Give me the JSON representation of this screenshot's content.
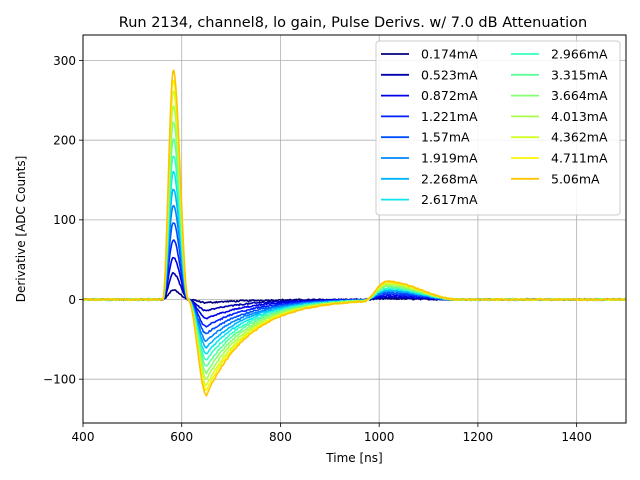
{
  "chart_data": {
    "type": "line",
    "title": "Run 2134, channel8, lo gain, Pulse Derivs. w/ 7.0 dB Attenuation",
    "xlabel": "Time [ns]",
    "ylabel": "Derivative [ADC Counts]",
    "xlim": [
      400,
      1500
    ],
    "ylim": [
      -155,
      332
    ],
    "xticks": [
      400,
      600,
      800,
      1000,
      1200,
      1400
    ],
    "yticks": [
      -100,
      0,
      100,
      200,
      300
    ],
    "ytick_labels": [
      "−100",
      "0",
      "100",
      "200",
      "300"
    ],
    "grid": true,
    "legend_location": "top-right",
    "legend_columns": 2,
    "pulse_shape": {
      "rise_start_ns": 562,
      "peak_ns": 583,
      "zero_cross_ns": 613,
      "trough_ns": 650,
      "tail_end_ns": 1200,
      "bump_start_ns": 968,
      "bump_peak_ns": 1015,
      "bump_end_ns": 1160
    },
    "series": [
      {
        "name": "0.174mA",
        "current_mA": 0.174,
        "peak": 12,
        "trough": -4,
        "bump": 1,
        "color": "#00007f"
      },
      {
        "name": "0.523mA",
        "current_mA": 0.523,
        "peak": 33,
        "trough": -14,
        "bump": 3,
        "color": "#0000b2"
      },
      {
        "name": "0.872mA",
        "current_mA": 0.872,
        "peak": 53,
        "trough": -24,
        "bump": 5,
        "color": "#0000e8"
      },
      {
        "name": "1.221mA",
        "current_mA": 1.221,
        "peak": 75,
        "trough": -34,
        "bump": 7,
        "color": "#0020ff"
      },
      {
        "name": "1.57mA",
        "current_mA": 1.57,
        "peak": 97,
        "trough": -43,
        "bump": 9,
        "color": "#0050ff"
      },
      {
        "name": "1.919mA",
        "current_mA": 1.919,
        "peak": 118,
        "trough": -52,
        "bump": 11,
        "color": "#0084ff"
      },
      {
        "name": "2.268mA",
        "current_mA": 2.268,
        "peak": 139,
        "trough": -60,
        "bump": 12,
        "color": "#00b4ff"
      },
      {
        "name": "2.617mA",
        "current_mA": 2.617,
        "peak": 160,
        "trough": -68,
        "bump": 14,
        "color": "#0de5ee"
      },
      {
        "name": "2.966mA",
        "current_mA": 2.966,
        "peak": 181,
        "trough": -76,
        "bump": 15,
        "color": "#36ffc1"
      },
      {
        "name": "3.315mA",
        "current_mA": 3.315,
        "peak": 202,
        "trough": -84,
        "bump": 17,
        "color": "#5dff9a"
      },
      {
        "name": "3.664mA",
        "current_mA": 3.664,
        "peak": 223,
        "trough": -92,
        "bump": 18,
        "color": "#84ff73"
      },
      {
        "name": "4.013mA",
        "current_mA": 4.013,
        "peak": 243,
        "trough": -100,
        "bump": 20,
        "color": "#aaff4d"
      },
      {
        "name": "4.362mA",
        "current_mA": 4.362,
        "peak": 262,
        "trough": -108,
        "bump": 21,
        "color": "#d1ff26"
      },
      {
        "name": "4.711mA",
        "current_mA": 4.711,
        "peak": 276,
        "trough": -114,
        "bump": 23,
        "color": "#f8f500"
      },
      {
        "name": "5.06mA",
        "current_mA": 5.06,
        "peak": 288,
        "trough": -120,
        "bump": 24,
        "color": "#ffc400"
      },
      {
        "name": "",
        "current_mA": null,
        "peak": 0,
        "trough": 0,
        "bump": 0,
        "color": "#ff9400"
      }
    ]
  }
}
